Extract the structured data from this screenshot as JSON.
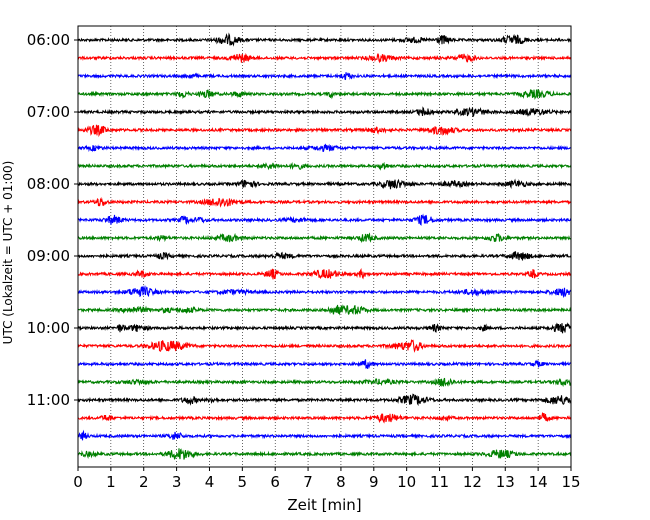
{
  "chart_data": {
    "type": "line",
    "xlabel": "Zeit  [min]",
    "ylabel": "UTC (Lokalzeit = UTC + 01:00)",
    "xlim": [
      0,
      15
    ],
    "x_ticks": [
      0,
      1,
      2,
      3,
      4,
      5,
      6,
      7,
      8,
      9,
      10,
      11,
      12,
      13,
      14,
      15
    ],
    "x_grid": true,
    "y_tick_labels": [
      "06:00",
      "07:00",
      "08:00",
      "09:00",
      "10:00",
      "11:00"
    ],
    "trace_interval_min": 15,
    "first_trace": "06:00",
    "last_trace": "11:45",
    "trace_colors": [
      "#000000",
      "#ff0000",
      "#0000ff",
      "#008000"
    ],
    "traces": [
      {
        "start": "06:00",
        "color": "#000000"
      },
      {
        "start": "06:15",
        "color": "#ff0000"
      },
      {
        "start": "06:30",
        "color": "#0000ff"
      },
      {
        "start": "06:45",
        "color": "#008000"
      },
      {
        "start": "07:00",
        "color": "#000000"
      },
      {
        "start": "07:15",
        "color": "#ff0000"
      },
      {
        "start": "07:30",
        "color": "#0000ff"
      },
      {
        "start": "07:45",
        "color": "#008000"
      },
      {
        "start": "08:00",
        "color": "#000000"
      },
      {
        "start": "08:15",
        "color": "#ff0000"
      },
      {
        "start": "08:30",
        "color": "#0000ff"
      },
      {
        "start": "08:45",
        "color": "#008000"
      },
      {
        "start": "09:00",
        "color": "#000000"
      },
      {
        "start": "09:15",
        "color": "#ff0000"
      },
      {
        "start": "09:30",
        "color": "#0000ff"
      },
      {
        "start": "09:45",
        "color": "#008000"
      },
      {
        "start": "10:00",
        "color": "#000000"
      },
      {
        "start": "10:15",
        "color": "#ff0000"
      },
      {
        "start": "10:30",
        "color": "#0000ff"
      },
      {
        "start": "10:45",
        "color": "#008000"
      },
      {
        "start": "11:00",
        "color": "#000000"
      },
      {
        "start": "11:15",
        "color": "#ff0000"
      },
      {
        "start": "11:30",
        "color": "#0000ff"
      },
      {
        "start": "11:45",
        "color": "#008000"
      }
    ]
  }
}
